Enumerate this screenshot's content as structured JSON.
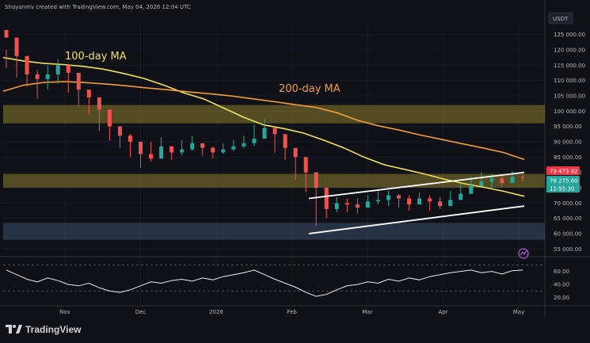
{
  "header": {
    "attribution": "Shayanmv created with TradingView.com, May 04, 2026 12:04 UTC",
    "currency": "USDT"
  },
  "branding": {
    "name": "TradingView"
  },
  "chart_data": [
    {
      "type": "candlestick",
      "title": "",
      "x_ticks": [
        "Nov",
        "Dec",
        "2026",
        "Feb",
        "Mar",
        "Apr",
        "May"
      ],
      "y_ticks": [
        55000,
        60000,
        65000,
        70000,
        75000,
        80000,
        85000,
        90000,
        95000,
        100000,
        105000,
        110000,
        115000,
        120000,
        125000
      ],
      "y_tick_labels": [
        "55 000.00",
        "60 000.00",
        "65 000.00",
        "70 000.00",
        "75 000.00",
        "80 000.00",
        "85 000.00",
        "90 000.00",
        "95 000.00",
        "100 000.00",
        "105 000.00",
        "110 000.00",
        "115 000.00",
        "120 000.00",
        "125 000.00"
      ],
      "ylim": [
        53000,
        128000
      ],
      "grid": true,
      "price_tags": [
        {
          "label": "79 473.82",
          "value": 79474,
          "color": "#f23645"
        },
        {
          "label": "78 275.60",
          "value": 78276,
          "color": "#26a69a"
        },
        {
          "label": "11:55:30",
          "value": 77300,
          "color": "#26a69a"
        }
      ],
      "zones": [
        {
          "from": 96000,
          "to": 102000,
          "color": "#8c7c2a"
        },
        {
          "from": 75000,
          "to": 79500,
          "color": "#8c7c2a"
        },
        {
          "from": 58000,
          "to": 63500,
          "color": "#3d4f6b"
        }
      ],
      "moving_averages": [
        {
          "name": "100-day MA",
          "color": "#f0e060",
          "values": [
            117500,
            116400,
            115600,
            115200,
            114600,
            113700,
            112300,
            110700,
            108500,
            106000,
            104000,
            101000,
            98000,
            95500,
            94300,
            92800,
            90500,
            88000,
            85000,
            82500,
            81000,
            79500,
            77800,
            76300,
            75100,
            73800,
            72200
          ]
        },
        {
          "name": "200-day MA",
          "color": "#f39c3a",
          "values": [
            106500,
            108500,
            109400,
            109600,
            109300,
            108800,
            108200,
            107500,
            106900,
            106200,
            105600,
            104900,
            104000,
            103100,
            102100,
            101200,
            99500,
            97000,
            95200,
            93800,
            92200,
            90800,
            89400,
            88000,
            86500,
            84200
          ]
        }
      ],
      "channel": {
        "lower": [
          [
            0,
            60000
          ],
          [
            1,
            69000
          ]
        ],
        "upper": [
          [
            0,
            71500
          ],
          [
            1,
            80000
          ]
        ],
        "color": "#ffffff"
      },
      "candles": [
        [
          124000,
          120000,
          114000
        ],
        [
          118000,
          121000,
          111000
        ],
        [
          112000,
          115500,
          108000
        ],
        [
          110500,
          113500,
          104000
        ],
        [
          112000,
          115000,
          107000
        ],
        [
          115000,
          117000,
          109000
        ],
        [
          112500,
          114000,
          106000
        ],
        [
          107000,
          110000,
          101500
        ],
        [
          104500,
          106000,
          99000
        ],
        [
          100500,
          102500,
          93500
        ],
        [
          95000,
          98000,
          90500
        ],
        [
          92000,
          94000,
          88000
        ],
        [
          90000,
          92500,
          85000
        ],
        [
          86000,
          88500,
          81500
        ],
        [
          84500,
          90000,
          83500
        ],
        [
          88500,
          91500,
          86000
        ],
        [
          86500,
          88500,
          84000
        ],
        [
          87500,
          90500,
          85500
        ],
        [
          89500,
          92000,
          87000
        ],
        [
          88000,
          89500,
          85500
        ],
        [
          86500,
          88500,
          84500
        ],
        [
          87500,
          89500,
          86000
        ],
        [
          88500,
          90500,
          87000
        ],
        [
          89500,
          92000,
          88000
        ],
        [
          91000,
          95500,
          88500
        ],
        [
          94500,
          97500,
          92000
        ],
        [
          92500,
          94000,
          86500
        ],
        [
          88000,
          90000,
          84000
        ],
        [
          85000,
          87000,
          77500
        ],
        [
          80000,
          82000,
          73500
        ],
        [
          75000,
          77000,
          62500
        ],
        [
          68000,
          72000,
          65000
        ],
        [
          70000,
          72000,
          67000
        ],
        [
          69500,
          71500,
          67000
        ],
        [
          68500,
          71500,
          66500
        ],
        [
          70500,
          72500,
          68500
        ],
        [
          71000,
          74000,
          69500
        ],
        [
          72500,
          74000,
          69000
        ],
        [
          71500,
          73000,
          68500
        ],
        [
          69500,
          72500,
          67500
        ],
        [
          71500,
          73500,
          70000
        ],
        [
          70500,
          72500,
          67500
        ],
        [
          69000,
          72000,
          68000
        ],
        [
          71000,
          74000,
          70000
        ],
        [
          73000,
          76500,
          72000
        ],
        [
          75500,
          78500,
          74000
        ],
        [
          77000,
          80000,
          75500
        ],
        [
          78000,
          79500,
          75000
        ],
        [
          76500,
          79000,
          75500
        ],
        [
          78500,
          80500,
          77000
        ],
        [
          78276,
          79500,
          77000
        ]
      ]
    },
    {
      "type": "line",
      "title": "",
      "y_ticks": [
        20,
        40,
        60
      ],
      "y_tick_labels": [
        "20.00",
        "40.00",
        "60.00"
      ],
      "ylim": [
        10,
        80
      ],
      "reference_lines": [
        30,
        70
      ],
      "series": [
        {
          "color": "#e8eaf6",
          "values": [
            62,
            55,
            48,
            44,
            50,
            46,
            40,
            38,
            42,
            35,
            30,
            28,
            32,
            38,
            44,
            42,
            46,
            48,
            45,
            50,
            47,
            52,
            55,
            58,
            62,
            55,
            48,
            42,
            36,
            28,
            22,
            25,
            32,
            38,
            40,
            44,
            42,
            48,
            45,
            50,
            47,
            52,
            55,
            58,
            60,
            62,
            58,
            60,
            56,
            61,
            62
          ]
        }
      ]
    }
  ]
}
